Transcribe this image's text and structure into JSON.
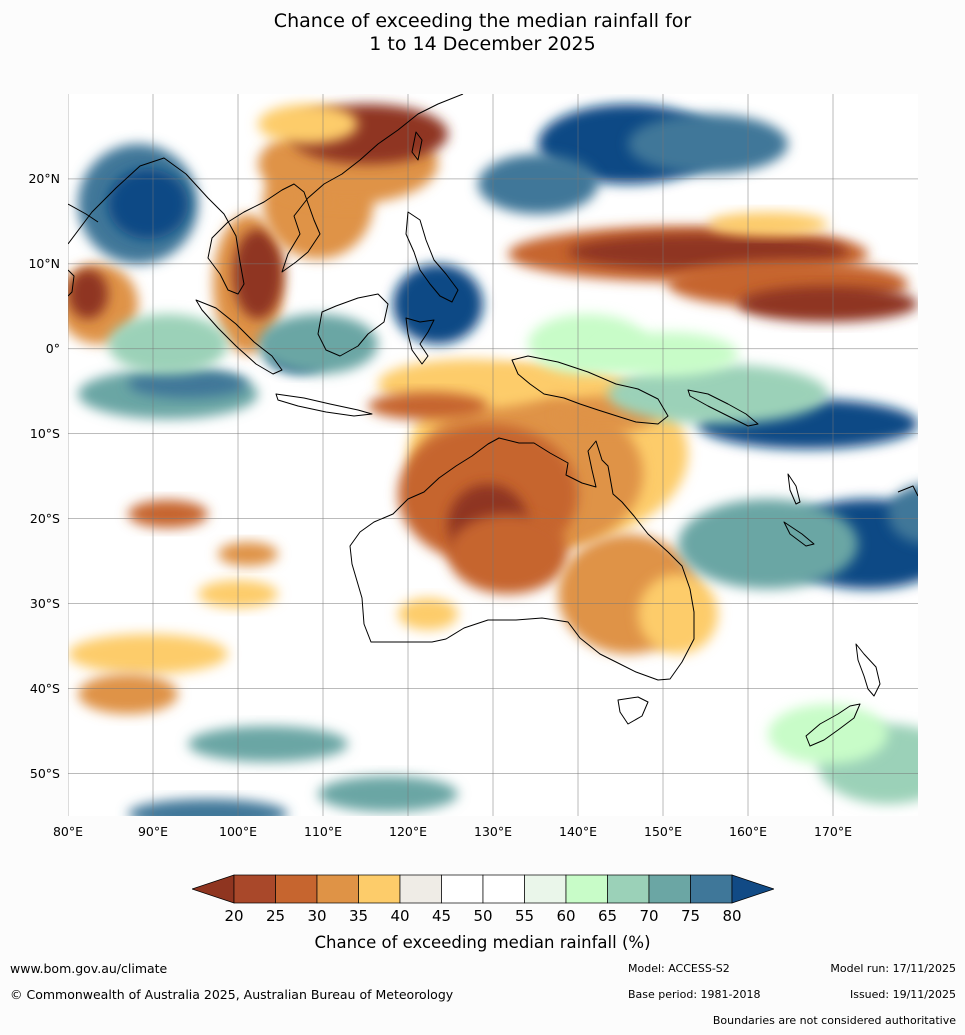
{
  "title": {
    "line1": "Chance of exceeding the median rainfall for",
    "line2": "1 to 14 December 2025"
  },
  "map": {
    "region": "Australia, Maritime Continent and western Pacific",
    "lon_range": [
      80,
      180
    ],
    "lat_range": [
      -55,
      30
    ],
    "lat_labels": [
      {
        "text": "20°N",
        "lat": 20
      },
      {
        "text": "10°N",
        "lat": 10
      },
      {
        "text": "0°",
        "lat": 0
      },
      {
        "text": "10°S",
        "lat": -10
      },
      {
        "text": "20°S",
        "lat": -20
      },
      {
        "text": "30°S",
        "lat": -30
      },
      {
        "text": "40°S",
        "lat": -40
      },
      {
        "text": "50°S",
        "lat": -50
      }
    ],
    "lon_labels": [
      {
        "text": "80°E",
        "lon": 80
      },
      {
        "text": "90°E",
        "lon": 90
      },
      {
        "text": "100°E",
        "lon": 100
      },
      {
        "text": "110°E",
        "lon": 110
      },
      {
        "text": "120°E",
        "lon": 120
      },
      {
        "text": "130°E",
        "lon": 130
      },
      {
        "text": "140°E",
        "lon": 140
      },
      {
        "text": "150°E",
        "lon": 150
      },
      {
        "text": "160°E",
        "lon": 160
      },
      {
        "text": "170°E",
        "lon": 170
      }
    ]
  },
  "legend": {
    "ticks": [
      "20",
      "25",
      "30",
      "35",
      "40",
      "45",
      "50",
      "55",
      "60",
      "65",
      "70",
      "75",
      "80"
    ],
    "colors": [
      "#a9482a",
      "#c6652f",
      "#df9346",
      "#fdcc6a",
      "#efece6",
      "#ffffff",
      "#ffffff",
      "#eaf6ea",
      "#c8fcc8",
      "#9bd1b8",
      "#6ba6a4",
      "#3f7799"
    ],
    "under_color": "#8f3520",
    "over_color": "#114a85",
    "label": "Chance of exceeding median rainfall (%)"
  },
  "footer": {
    "url": "www.bom.gov.au/climate",
    "copyright": "© Commonwealth of Australia 2025, Australian Bureau of Meteorology",
    "model": "Model: ACCESS-S2",
    "base_period": "Base period: 1981-2018",
    "model_run": "Model run: 17/11/2025",
    "issued": "Issued: 19/11/2025",
    "boundaries": "Boundaries are not considered authoritative"
  }
}
